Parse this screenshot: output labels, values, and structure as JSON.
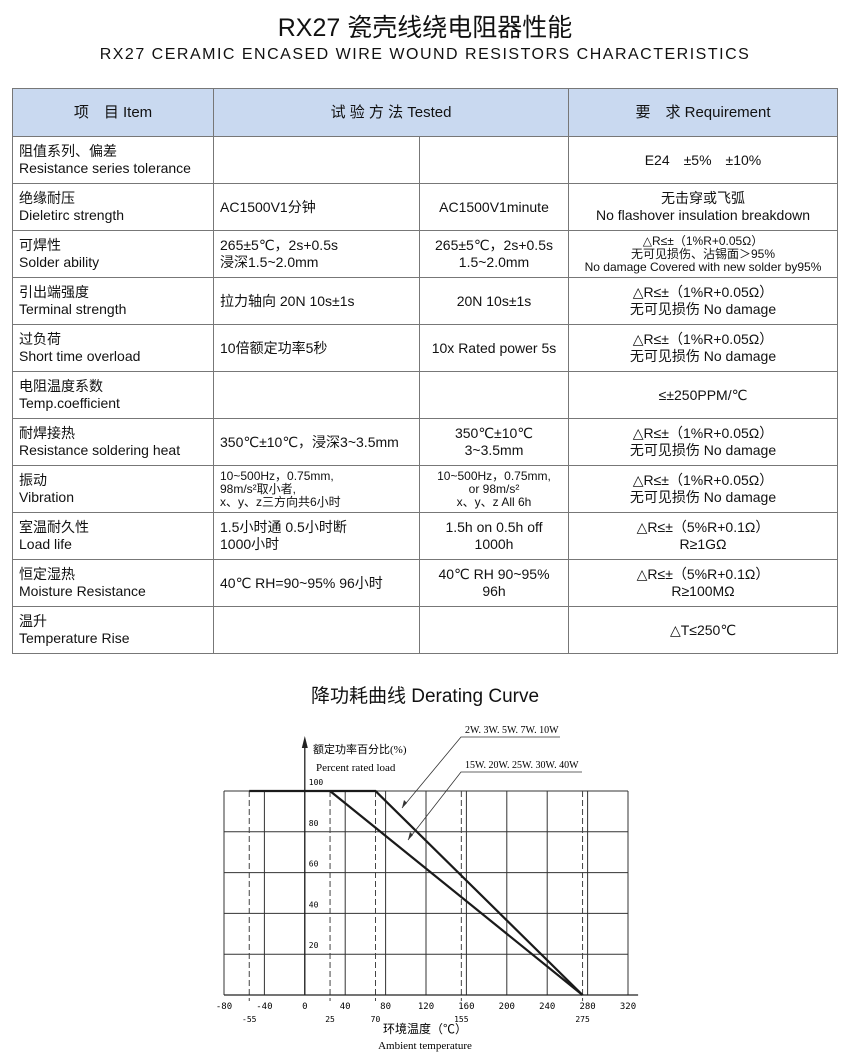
{
  "title_cn": "RX27 瓷壳线绕电阻器性能",
  "title_en": "RX27 CERAMIC ENCASED WIRE WOUND RESISTORS CHARACTERISTICS",
  "table": {
    "headers": [
      "项　目  Item",
      "试 验 方 法   Tested",
      "要　求  Requirement"
    ],
    "rows": [
      {
        "item": [
          "阻值系列、偏差",
          "Resistance series tolerance"
        ],
        "method_cn": [],
        "method_en": [],
        "req": [
          "E24　±5%　±10%"
        ]
      },
      {
        "item": [
          "绝缘耐压",
          "Dieletirc  strength"
        ],
        "method_cn": [
          "AC1500V1分钟"
        ],
        "method_en": [
          "AC1500V1minute"
        ],
        "req": [
          "无击穿或飞弧",
          "No flashover insulation breakdown"
        ]
      },
      {
        "item": [
          "可焊性",
          "Solder ability"
        ],
        "method_cn": [
          "265±5℃，2s+0.5s",
          "浸深1.5~2.0mm"
        ],
        "method_en": [
          "265±5℃，2s+0.5s",
          "1.5~2.0mm"
        ],
        "req": [
          "△R≤±（1%R+0.05Ω）",
          "无可见损伤、沾锡面＞95%",
          "No damage Covered with new solder by95%"
        ],
        "req_small": true
      },
      {
        "item": [
          "引出端强度",
          "Terminal strength"
        ],
        "method_cn": [
          "拉力轴向 20N 10s±1s"
        ],
        "method_en": [
          "20N 10s±1s"
        ],
        "req": [
          "△R≤±（1%R+0.05Ω）",
          "无可见损伤  No damage"
        ]
      },
      {
        "item": [
          "过负荷",
          "Short time overload"
        ],
        "method_cn": [
          "10倍额定功率5秒"
        ],
        "method_en": [
          "10x Rated power  5s"
        ],
        "req": [
          "△R≤±（1%R+0.05Ω）",
          "无可见损伤  No damage"
        ]
      },
      {
        "item": [
          "电阻温度系数",
          "Temp.coefficient"
        ],
        "method_cn": [],
        "method_en": [],
        "req": [
          "≤±250PPM/℃"
        ]
      },
      {
        "item": [
          "耐焊接热",
          "Resistance soldering heat"
        ],
        "method_cn": [
          "350℃±10℃，浸深3~3.5mm"
        ],
        "method_en": [
          "350℃±10℃",
          "3~3.5mm"
        ],
        "req": [
          "△R≤±（1%R+0.05Ω）",
          "无可见损伤  No damage"
        ]
      },
      {
        "item": [
          "振动",
          "Vibration"
        ],
        "method_cn": [
          "10~500Hz，0.75mm,",
          "98m/s²取小者,",
          "x、y、z三方向共6小时"
        ],
        "method_en": [
          "10~500Hz，0.75mm,",
          "or 98m/s²",
          "x、y、z All 6h"
        ],
        "req": [
          "△R≤±（1%R+0.05Ω）",
          "无可见损伤  No damage"
        ],
        "method_small": true
      },
      {
        "item": [
          "室温耐久性",
          "Load life"
        ],
        "method_cn": [
          "1.5小时通  0.5小时断",
          "1000小时"
        ],
        "method_en": [
          "1.5h on  0.5h off",
          "1000h"
        ],
        "req": [
          "△R≤±（5%R+0.1Ω）",
          "R≥1GΩ"
        ]
      },
      {
        "item": [
          "恒定湿热",
          "Moisture Resistance"
        ],
        "method_cn": [
          "40℃  RH=90~95%  96小时"
        ],
        "method_en": [
          "40℃ RH 90~95%",
          "96h"
        ],
        "req": [
          "△R≤±（5%R+0.1Ω）",
          "R≥100MΩ"
        ]
      },
      {
        "item": [
          "温升",
          "Temperature Rise"
        ],
        "method_cn": [],
        "method_en": [],
        "req": [
          "△T≤250℃"
        ]
      }
    ]
  },
  "chart_title": "降功耗曲线   Derating Curve",
  "chart_data": {
    "type": "line",
    "title": "降功耗曲线   Derating Curve",
    "ylabel": [
      "额定功率百分比(%)",
      "Percent rated load"
    ],
    "xlabel": [
      "环境温度（℃）",
      "Ambient temperature"
    ],
    "xlim": [
      -80,
      320
    ],
    "ylim": [
      0,
      100
    ],
    "x_ticks": [
      -80,
      -40,
      0,
      40,
      80,
      120,
      160,
      200,
      240,
      280,
      320
    ],
    "x_marks": [
      -55,
      25,
      70,
      155,
      275
    ],
    "y_ticks": [
      20,
      40,
      60,
      80,
      100
    ],
    "grid": true,
    "line_color": "#1a1a1a",
    "grid_color": "#333333",
    "series": [
      {
        "name": "2W. 3W. 5W. 7W. 10W",
        "points": [
          [
            -55,
            100
          ],
          [
            70,
            100
          ],
          [
            275,
            0
          ]
        ]
      },
      {
        "name": "15W. 20W. 25W. 30W. 40W",
        "points": [
          [
            25,
            100
          ],
          [
            275,
            0
          ]
        ]
      }
    ]
  }
}
